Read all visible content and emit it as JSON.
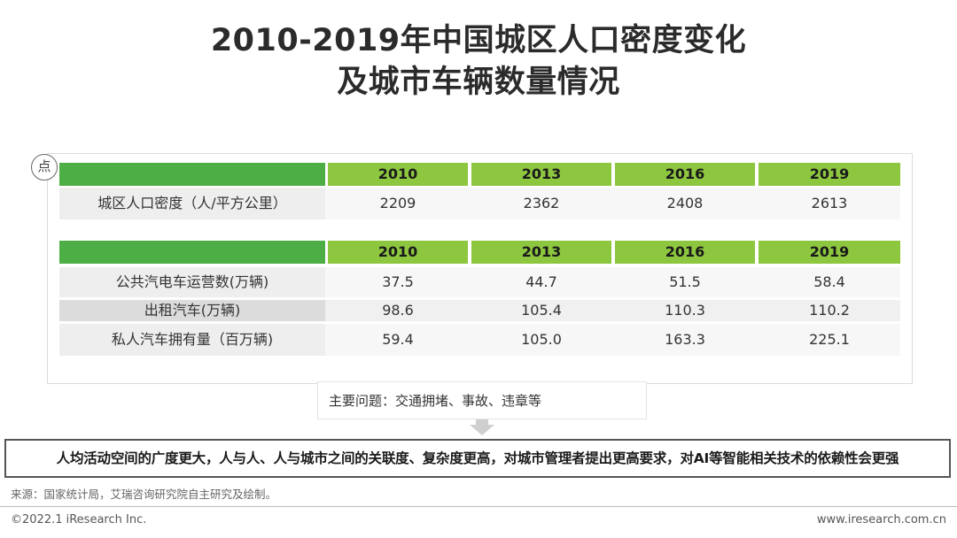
{
  "title": {
    "line1": "2010-2019年中国城区人口密度变化",
    "line2": "及城市车辆数量情况"
  },
  "badge": "点",
  "table1": {
    "headers": [
      "2010",
      "2013",
      "2016",
      "2019"
    ],
    "rows": [
      {
        "label": "城区人口密度（人/平方公里）",
        "values": [
          "2209",
          "2362",
          "2408",
          "2613"
        ]
      }
    ]
  },
  "table2": {
    "headers": [
      "2010",
      "2013",
      "2016",
      "2019"
    ],
    "rows": [
      {
        "label": "公共汽电车运营数(万辆)",
        "values": [
          "37.5",
          "44.7",
          "51.5",
          "58.4"
        ]
      },
      {
        "label": "出租汽车(万辆)",
        "values": [
          "98.6",
          "105.4",
          "110.3",
          "110.2"
        ]
      },
      {
        "label": "私人汽车拥有量（百万辆)",
        "values": [
          "59.4",
          "105.0",
          "163.3",
          "225.1"
        ]
      }
    ]
  },
  "note": "主要问题：交通拥堵、事故、违章等",
  "conclusion": "人均活动空间的广度更大，人与人、人与城市之间的关联度、复杂度更高，对城市管理者提出更高要求，对AI等智能相关技术的依赖性会更强",
  "source": "来源：国家统计局，艾瑞咨询研究院自主研究及绘制。",
  "footer": {
    "copyright": "©2022.1 iResearch Inc.",
    "website": "www.iresearch.com.cn"
  },
  "colors": {
    "header_green": "#8dc63f",
    "header_dark_green": "#4cae45"
  }
}
